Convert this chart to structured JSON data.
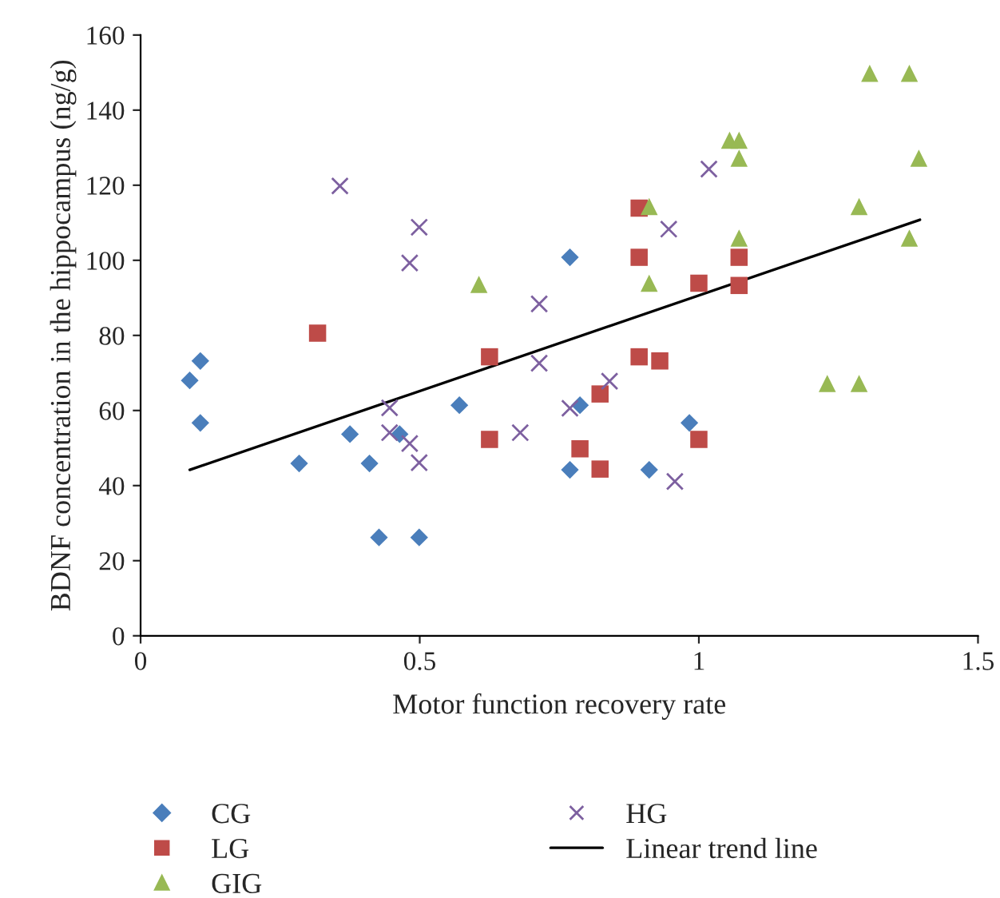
{
  "chart_data": {
    "type": "scatter",
    "xlabel": "Motor function recovery rate",
    "ylabel": "BDNF concentration in the hippocampus (ng/g)",
    "xlim": [
      0,
      1.5
    ],
    "xticks": [
      0,
      0.5,
      1,
      1.5
    ],
    "ylim": [
      0,
      160
    ],
    "yticks": [
      0,
      20,
      40,
      60,
      80,
      100,
      120,
      140,
      160
    ],
    "grid": false,
    "legend": "bottom",
    "series": [
      {
        "name": "CG",
        "color": "#4a7ebb",
        "marker": "diamond",
        "x": [
          0.088,
          0.107,
          0.107,
          0.284,
          0.375,
          0.41,
          0.427,
          0.464,
          0.499,
          0.571,
          0.769,
          0.787,
          0.769,
          0.911,
          0.983
        ],
        "values": [
          68,
          73.2,
          56.7,
          45.9,
          53.7,
          45.9,
          26.2,
          53.7,
          26.2,
          61.4,
          100.8,
          61.4,
          44.2,
          44.2,
          56.7
        ]
      },
      {
        "name": "LG",
        "color": "#be4b48",
        "marker": "square",
        "x": [
          0.317,
          0.625,
          0.625,
          0.893,
          0.893,
          1.072,
          1.0,
          1.072,
          0.893,
          0.93,
          0.823,
          0.787,
          0.823,
          1.0
        ],
        "values": [
          80.6,
          74.3,
          52.3,
          113.9,
          100.8,
          100.8,
          93.9,
          93.3,
          74.3,
          73.2,
          64.4,
          49.8,
          44.4,
          52.3
        ]
      },
      {
        "name": "GIG",
        "color": "#98b954",
        "marker": "triangle",
        "x": [
          0.606,
          1.306,
          1.377,
          1.055,
          1.072,
          1.072,
          1.394,
          0.911,
          1.287,
          1.072,
          1.377,
          0.911,
          1.23,
          1.287
        ],
        "values": [
          93.6,
          149.8,
          149.8,
          132,
          132,
          127.2,
          127.2,
          114.3,
          114.3,
          105.9,
          105.9,
          93.9,
          67.2,
          67.2
        ]
      },
      {
        "name": "HG",
        "color": "#7d60a0",
        "marker": "cross",
        "x": [
          0.357,
          0.499,
          0.482,
          0.714,
          0.714,
          0.446,
          0.446,
          0.482,
          0.499,
          0.68,
          1.018,
          0.946,
          0.84,
          0.769,
          0.957
        ],
        "values": [
          119.8,
          108.8,
          99.3,
          88.4,
          72.6,
          60.7,
          54.1,
          51.2,
          46.1,
          54.1,
          124.3,
          108.3,
          67.8,
          60.6,
          41.1
        ]
      },
      {
        "name": "Linear trend line",
        "type": "line",
        "color": "#000000",
        "marker": "none",
        "line_style": "solid",
        "x": [
          0.088,
          1.396
        ],
        "values": [
          44.2,
          110.8
        ]
      }
    ]
  }
}
